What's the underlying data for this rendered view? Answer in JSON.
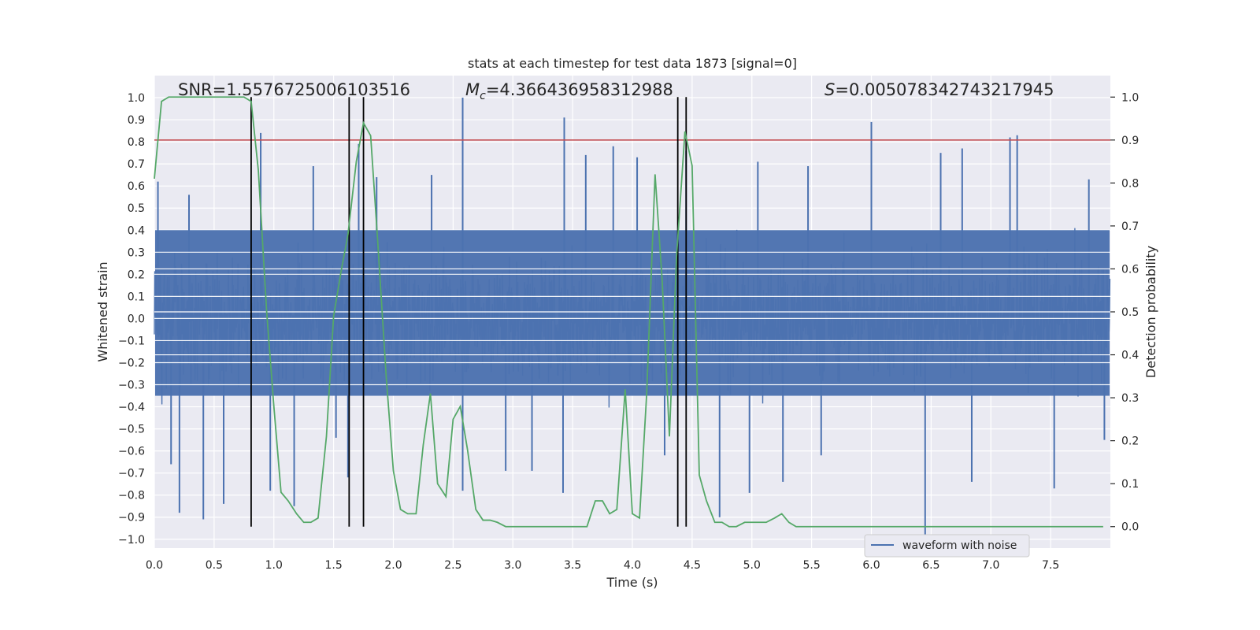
{
  "chart_data": {
    "type": "line",
    "title": "stats at each timestep for test data 1873 [signal=0]",
    "xlabel": "Time (s)",
    "ylabel": "Whitened strain",
    "y2label": "Detection probability",
    "xlim": [
      0.0,
      8.0
    ],
    "ylim": [
      -1.04,
      1.1
    ],
    "y2lim": [
      -0.05,
      1.05
    ],
    "xticks": [
      "0.0",
      "0.5",
      "1.0",
      "1.5",
      "2.0",
      "2.5",
      "3.0",
      "3.5",
      "4.0",
      "4.5",
      "5.0",
      "5.5",
      "6.0",
      "6.5",
      "7.0",
      "7.5"
    ],
    "yticks": [
      "1.0",
      "0.9",
      "0.8",
      "0.7",
      "0.6",
      "0.5",
      "0.4",
      "0.3",
      "0.2",
      "0.1",
      "0.0",
      "−0.1",
      "−0.2",
      "−0.3",
      "−0.4",
      "−0.5",
      "−0.6",
      "−0.7",
      "−0.8",
      "−0.9",
      "−1.0"
    ],
    "y2ticks": [
      "1.0",
      "0.9",
      "0.8",
      "0.7",
      "0.6",
      "0.5",
      "0.4",
      "0.3",
      "0.2",
      "0.1",
      "0.0"
    ],
    "annotations": {
      "snr": "SNR=1.5576725006103516",
      "mc_symbol": "M",
      "mc_sub": "c",
      "mc_value": "=4.366436958312988",
      "s_symbol": "S",
      "s_value": "=0.005078342743217945"
    },
    "legend": {
      "label": "waveform with noise",
      "placement": "lower-right"
    },
    "threshold": {
      "y2": 0.9,
      "color": "#c44e52"
    },
    "vlines": [
      0.81,
      1.63,
      1.75,
      4.38,
      4.45
    ],
    "grid": true,
    "colors": {
      "waveform": "#4c72b0",
      "probability": "#55a868",
      "background": "#eaeaf2",
      "vline": "#000000"
    },
    "waveform_envelope": {
      "description_note": "",
      "core_band": [
        -0.35,
        0.4
      ],
      "spikes": [
        [
          0.03,
          0.62
        ],
        [
          0.14,
          -0.66
        ],
        [
          0.21,
          -0.88
        ],
        [
          0.29,
          0.56
        ],
        [
          0.41,
          -0.91
        ],
        [
          0.58,
          -0.84
        ],
        [
          0.89,
          0.84
        ],
        [
          0.97,
          -0.78
        ],
        [
          1.17,
          -0.85
        ],
        [
          1.33,
          0.69
        ],
        [
          1.52,
          -0.54
        ],
        [
          1.62,
          -0.72
        ],
        [
          1.71,
          0.79
        ],
        [
          1.86,
          0.64
        ],
        [
          2.32,
          0.65
        ],
        [
          2.58,
          1.0
        ],
        [
          2.58,
          -0.78
        ],
        [
          2.94,
          -0.69
        ],
        [
          3.16,
          -0.69
        ],
        [
          3.43,
          0.91
        ],
        [
          3.42,
          -0.79
        ],
        [
          3.61,
          0.74
        ],
        [
          3.84,
          0.78
        ],
        [
          4.04,
          0.73
        ],
        [
          4.27,
          -0.62
        ],
        [
          4.45,
          0.76
        ],
        [
          4.73,
          -0.9
        ],
        [
          4.98,
          -0.79
        ],
        [
          5.05,
          0.71
        ],
        [
          5.26,
          -0.74
        ],
        [
          5.47,
          0.69
        ],
        [
          5.58,
          -0.62
        ],
        [
          6.0,
          0.89
        ],
        [
          6.45,
          -0.99
        ],
        [
          6.58,
          0.75
        ],
        [
          6.76,
          0.77
        ],
        [
          6.84,
          -0.74
        ],
        [
          7.16,
          0.82
        ],
        [
          7.22,
          0.83
        ],
        [
          7.53,
          -0.77
        ],
        [
          7.82,
          0.63
        ],
        [
          7.95,
          -0.55
        ]
      ]
    },
    "series": [
      {
        "role": "probability",
        "x": [
          0.0,
          0.06,
          0.12,
          0.19,
          0.25,
          0.31,
          0.37,
          0.44,
          0.5,
          0.56,
          0.62,
          0.69,
          0.75,
          0.81,
          0.87,
          0.94,
          1.0,
          1.06,
          1.12,
          1.19,
          1.25,
          1.31,
          1.37,
          1.44,
          1.5,
          1.56,
          1.62,
          1.69,
          1.75,
          1.81,
          1.87,
          1.94,
          2.0,
          2.06,
          2.12,
          2.19,
          2.25,
          2.31,
          2.37,
          2.44,
          2.5,
          2.56,
          2.62,
          2.69,
          2.75,
          2.81,
          2.87,
          2.94,
          3.0,
          3.06,
          3.12,
          3.19,
          3.25,
          3.31,
          3.37,
          3.44,
          3.5,
          3.56,
          3.62,
          3.69,
          3.75,
          3.81,
          3.87,
          3.94,
          4.0,
          4.06,
          4.12,
          4.19,
          4.25,
          4.31,
          4.37,
          4.44,
          4.5,
          4.56,
          4.62,
          4.69,
          4.75,
          4.81,
          4.87,
          4.94,
          5.0,
          5.06,
          5.12,
          5.19,
          5.25,
          5.31,
          5.37,
          5.44,
          5.5,
          5.56,
          5.62,
          5.69,
          5.75,
          5.81,
          5.87,
          5.94,
          6.0,
          6.06,
          6.12,
          6.19,
          6.25,
          6.31,
          6.37,
          6.44,
          6.5,
          6.56,
          6.62,
          6.69,
          6.75,
          6.81,
          6.87,
          6.94,
          7.0,
          7.06,
          7.12,
          7.19,
          7.25,
          7.31,
          7.37,
          7.44,
          7.5,
          7.56,
          7.62,
          7.69,
          7.75,
          7.81,
          7.87,
          7.94
        ],
        "values": [
          0.81,
          0.99,
          1.0,
          1.0,
          1.0,
          1.0,
          1.0,
          1.0,
          1.0,
          1.0,
          1.0,
          1.0,
          1.0,
          0.99,
          0.83,
          0.5,
          0.28,
          0.08,
          0.06,
          0.03,
          0.01,
          0.01,
          0.02,
          0.21,
          0.49,
          0.59,
          0.68,
          0.85,
          0.94,
          0.91,
          0.66,
          0.35,
          0.13,
          0.04,
          0.03,
          0.03,
          0.19,
          0.31,
          0.1,
          0.07,
          0.25,
          0.28,
          0.18,
          0.04,
          0.015,
          0.015,
          0.01,
          0.0,
          0.0,
          0.0,
          0.0,
          0.0,
          0.0,
          0.0,
          0.0,
          0.0,
          0.0,
          0.0,
          0.0,
          0.06,
          0.06,
          0.03,
          0.04,
          0.32,
          0.03,
          0.02,
          0.31,
          0.82,
          0.57,
          0.21,
          0.63,
          0.92,
          0.84,
          0.12,
          0.06,
          0.01,
          0.01,
          0.0,
          0.0,
          0.01,
          0.01,
          0.01,
          0.01,
          0.02,
          0.03,
          0.01,
          0.0,
          0.0,
          0.0,
          0.0,
          0.0,
          0.0,
          0.0,
          0.0,
          0.0,
          0.0,
          0.0,
          0.0,
          0.0,
          0.0,
          0.0,
          0.0,
          0.0,
          0.0,
          0.0,
          0.0,
          0.0,
          0.0,
          0.0,
          0.0,
          0.0,
          0.0,
          0.0,
          0.0,
          0.0,
          0.0,
          0.0,
          0.0,
          0.0,
          0.0,
          0.0,
          0.0,
          0.0,
          0.0,
          0.0,
          0.0,
          0.0,
          0.0
        ]
      }
    ]
  }
}
